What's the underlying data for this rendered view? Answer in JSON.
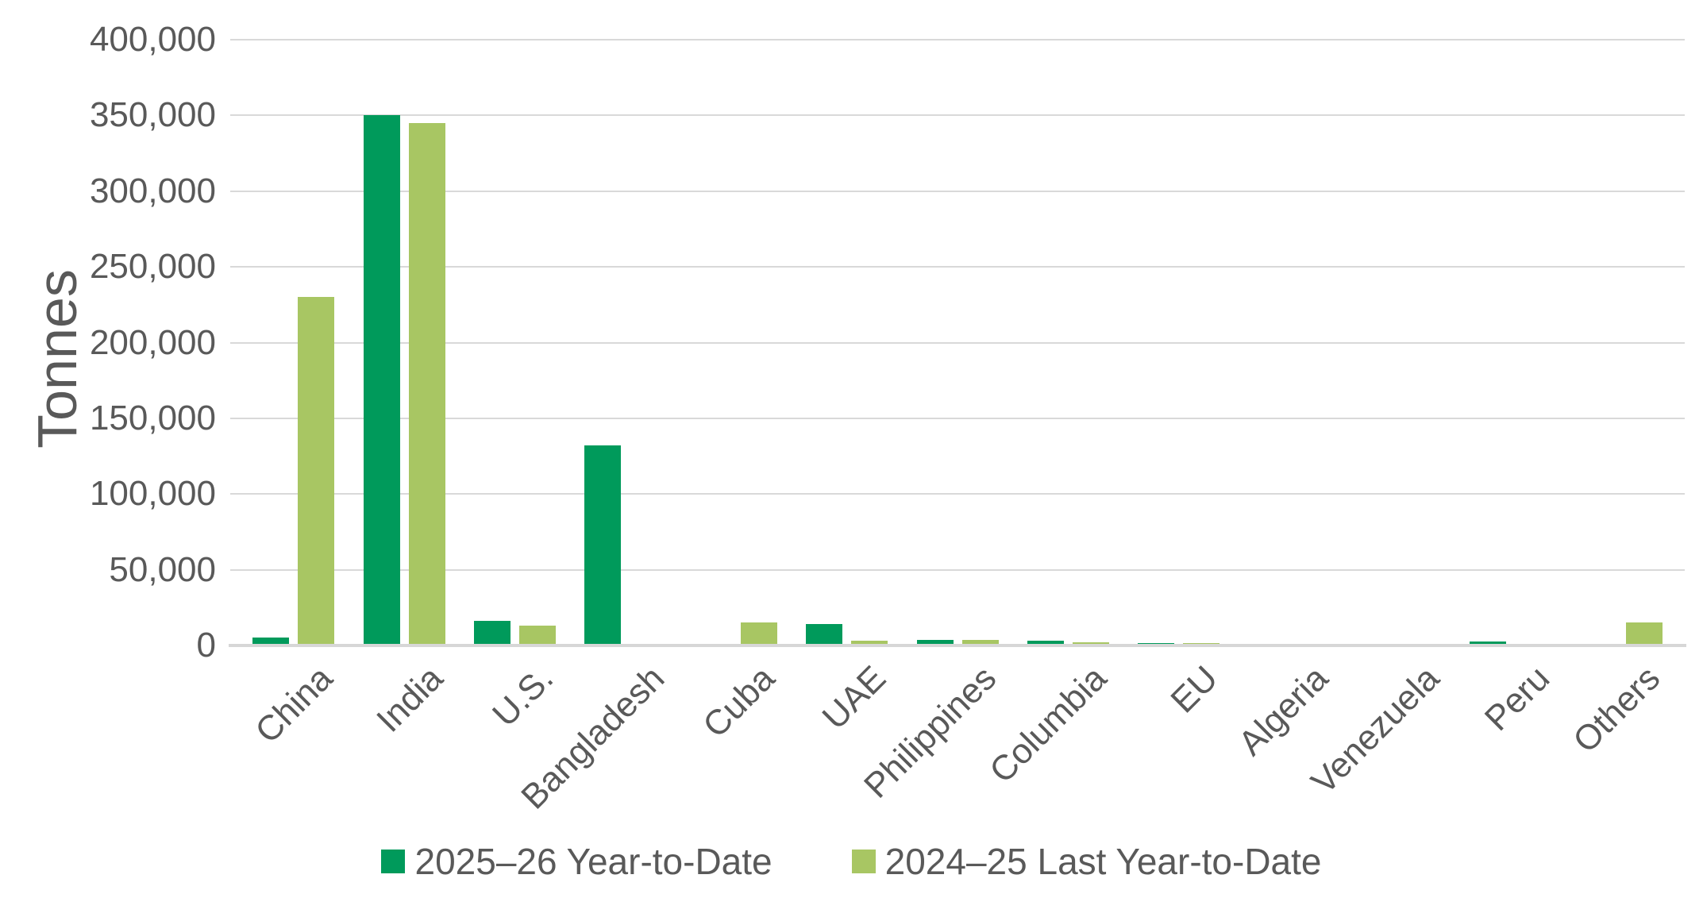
{
  "chart_data": {
    "type": "bar",
    "title": "",
    "ylabel": "Tonnes",
    "xlabel": "",
    "categories": [
      "China",
      "India",
      "U.S.",
      "Bangladesh",
      "Cuba",
      "UAE",
      "Philippines",
      "Columbia",
      "EU",
      "Algeria",
      "Venezuela",
      "Peru",
      "Others"
    ],
    "series": [
      {
        "name": "2025–26 Year-to-Date",
        "color": "#009a5b",
        "values": [
          5000,
          350000,
          16000,
          132000,
          0,
          14000,
          3500,
          3000,
          1500,
          0,
          0,
          2500,
          0
        ]
      },
      {
        "name": "2024–25 Last Year-to-Date",
        "color": "#a8c663",
        "values": [
          230000,
          345000,
          13000,
          0,
          15000,
          3000,
          3500,
          2000,
          1500,
          0,
          0,
          0,
          15000
        ]
      }
    ],
    "ylim": [
      0,
      400000
    ],
    "ytick_step": 50000,
    "ytick_labels": [
      "0",
      "50,000",
      "100,000",
      "150,000",
      "200,000",
      "250,000",
      "300,000",
      "350,000",
      "400,000"
    ],
    "grid": "horizontal-on",
    "gridline_color": "#d9d9d9",
    "axis_text_color": "#595959",
    "legend_position": "bottom-center",
    "background_color": "#ffffff"
  }
}
